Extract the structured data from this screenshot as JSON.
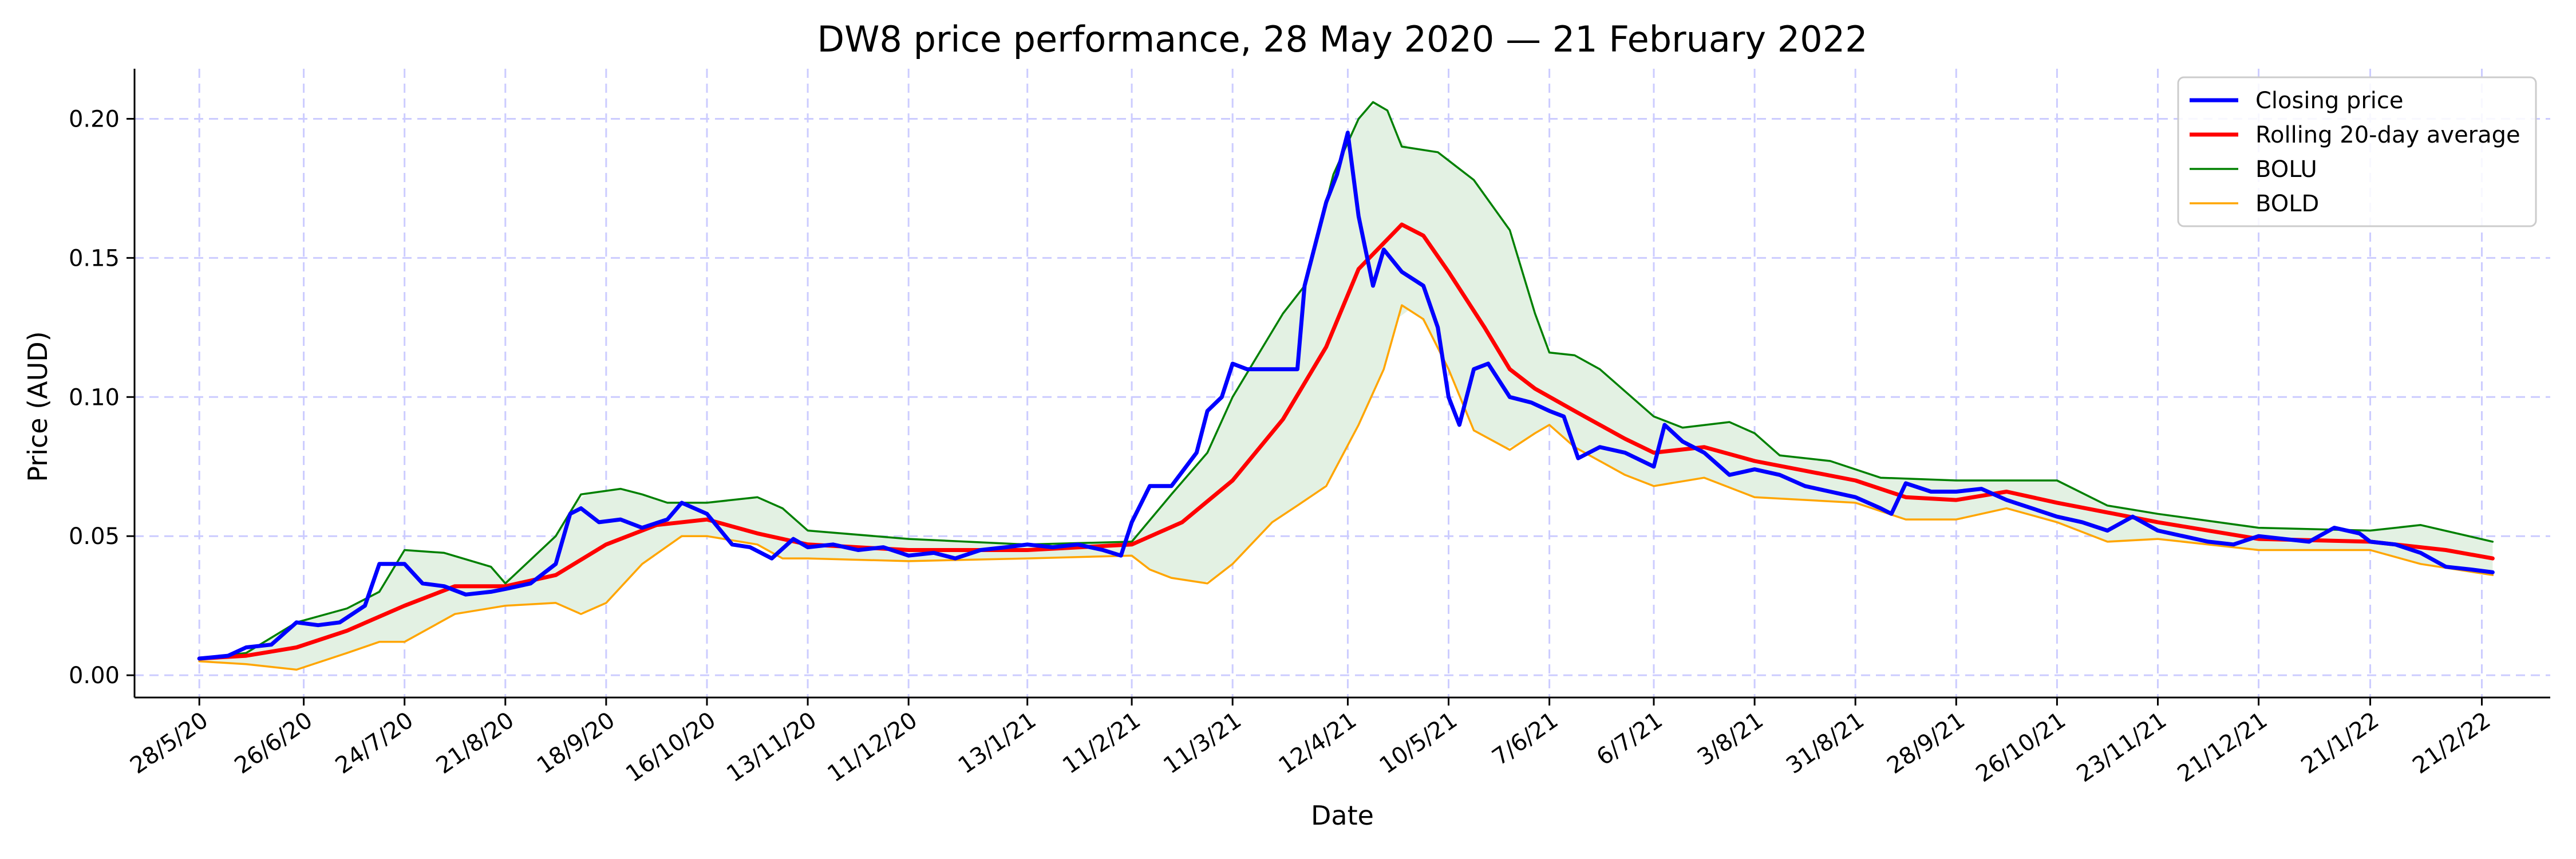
{
  "chart_data": {
    "type": "line",
    "title": "DW8 price performance, 28 May 2020 — 21 February 2022",
    "xlabel": "Date",
    "ylabel": "Price (AUD)",
    "ylim": [
      -0.008,
      0.218
    ],
    "xlim": [
      "2020-05-10",
      "2022-03-12"
    ],
    "yticks": [
      0.0,
      0.05,
      0.1,
      0.15,
      0.2
    ],
    "ytick_labels": [
      "0.00",
      "0.05",
      "0.10",
      "0.15",
      "0.20"
    ],
    "xticks": [
      "2020-05-28",
      "2020-06-26",
      "2020-07-24",
      "2020-08-21",
      "2020-09-18",
      "2020-10-16",
      "2020-11-13",
      "2020-12-11",
      "2021-01-13",
      "2021-02-11",
      "2021-03-11",
      "2021-04-12",
      "2021-05-10",
      "2021-06-07",
      "2021-07-06",
      "2021-08-03",
      "2021-08-31",
      "2021-09-28",
      "2021-10-26",
      "2021-11-23",
      "2021-12-21",
      "2022-01-21",
      "2022-02-21"
    ],
    "xtick_labels": [
      "28/5/20",
      "26/6/20",
      "24/7/20",
      "21/8/20",
      "18/9/20",
      "16/10/20",
      "13/11/20",
      "11/12/20",
      "13/1/21",
      "11/2/21",
      "11/3/21",
      "12/4/21",
      "10/5/21",
      "7/6/21",
      "6/7/21",
      "3/8/21",
      "31/8/21",
      "28/9/21",
      "26/10/21",
      "23/11/21",
      "21/12/21",
      "21/1/22",
      "21/2/22"
    ],
    "grid": true,
    "legend_position": "upper right",
    "band_fill_color": "#e3f1e3",
    "series": [
      {
        "name": "Closing price",
        "color": "#0000ff",
        "points": [
          [
            "2020-05-28",
            0.006
          ],
          [
            "2020-06-05",
            0.007
          ],
          [
            "2020-06-10",
            0.01
          ],
          [
            "2020-06-17",
            0.011
          ],
          [
            "2020-06-24",
            0.019
          ],
          [
            "2020-06-30",
            0.018
          ],
          [
            "2020-07-06",
            0.019
          ],
          [
            "2020-07-13",
            0.025
          ],
          [
            "2020-07-17",
            0.04
          ],
          [
            "2020-07-24",
            0.04
          ],
          [
            "2020-07-29",
            0.033
          ],
          [
            "2020-08-04",
            0.032
          ],
          [
            "2020-08-10",
            0.029
          ],
          [
            "2020-08-17",
            0.03
          ],
          [
            "2020-08-21",
            0.031
          ],
          [
            "2020-08-28",
            0.033
          ],
          [
            "2020-09-04",
            0.04
          ],
          [
            "2020-09-08",
            0.058
          ],
          [
            "2020-09-11",
            0.06
          ],
          [
            "2020-09-16",
            0.055
          ],
          [
            "2020-09-22",
            0.056
          ],
          [
            "2020-09-28",
            0.053
          ],
          [
            "2020-10-05",
            0.056
          ],
          [
            "2020-10-09",
            0.062
          ],
          [
            "2020-10-16",
            0.058
          ],
          [
            "2020-10-23",
            0.047
          ],
          [
            "2020-10-28",
            0.046
          ],
          [
            "2020-11-03",
            0.042
          ],
          [
            "2020-11-09",
            0.049
          ],
          [
            "2020-11-13",
            0.046
          ],
          [
            "2020-11-20",
            0.047
          ],
          [
            "2020-11-27",
            0.045
          ],
          [
            "2020-12-04",
            0.046
          ],
          [
            "2020-12-11",
            0.043
          ],
          [
            "2020-12-18",
            0.044
          ],
          [
            "2020-12-24",
            0.042
          ],
          [
            "2020-12-31",
            0.045
          ],
          [
            "2021-01-07",
            0.046
          ],
          [
            "2021-01-13",
            0.047
          ],
          [
            "2021-01-20",
            0.046
          ],
          [
            "2021-01-27",
            0.047
          ],
          [
            "2021-02-03",
            0.045
          ],
          [
            "2021-02-08",
            0.043
          ],
          [
            "2021-02-11",
            0.055
          ],
          [
            "2021-02-16",
            0.068
          ],
          [
            "2021-02-22",
            0.068
          ],
          [
            "2021-03-01",
            0.08
          ],
          [
            "2021-03-04",
            0.095
          ],
          [
            "2021-03-08",
            0.1
          ],
          [
            "2021-03-11",
            0.112
          ],
          [
            "2021-03-15",
            0.11
          ],
          [
            "2021-03-22",
            0.11
          ],
          [
            "2021-03-29",
            0.11
          ],
          [
            "2021-03-31",
            0.14
          ],
          [
            "2021-04-06",
            0.17
          ],
          [
            "2021-04-09",
            0.18
          ],
          [
            "2021-04-12",
            0.195
          ],
          [
            "2021-04-15",
            0.165
          ],
          [
            "2021-04-19",
            0.14
          ],
          [
            "2021-04-22",
            0.153
          ],
          [
            "2021-04-27",
            0.145
          ],
          [
            "2021-05-03",
            0.14
          ],
          [
            "2021-05-07",
            0.125
          ],
          [
            "2021-05-10",
            0.1
          ],
          [
            "2021-05-13",
            0.09
          ],
          [
            "2021-05-17",
            0.11
          ],
          [
            "2021-05-21",
            0.112
          ],
          [
            "2021-05-27",
            0.1
          ],
          [
            "2021-06-02",
            0.098
          ],
          [
            "2021-06-07",
            0.095
          ],
          [
            "2021-06-11",
            0.093
          ],
          [
            "2021-06-15",
            0.078
          ],
          [
            "2021-06-21",
            0.082
          ],
          [
            "2021-06-28",
            0.08
          ],
          [
            "2021-07-06",
            0.075
          ],
          [
            "2021-07-09",
            0.09
          ],
          [
            "2021-07-14",
            0.084
          ],
          [
            "2021-07-20",
            0.08
          ],
          [
            "2021-07-27",
            0.072
          ],
          [
            "2021-08-03",
            0.074
          ],
          [
            "2021-08-10",
            0.072
          ],
          [
            "2021-08-17",
            0.068
          ],
          [
            "2021-08-24",
            0.066
          ],
          [
            "2021-08-31",
            0.064
          ],
          [
            "2021-09-07",
            0.06
          ],
          [
            "2021-09-10",
            0.058
          ],
          [
            "2021-09-14",
            0.069
          ],
          [
            "2021-09-21",
            0.066
          ],
          [
            "2021-09-28",
            0.066
          ],
          [
            "2021-10-05",
            0.067
          ],
          [
            "2021-10-12",
            0.063
          ],
          [
            "2021-10-19",
            0.06
          ],
          [
            "2021-10-26",
            0.057
          ],
          [
            "2021-11-02",
            0.055
          ],
          [
            "2021-11-09",
            0.052
          ],
          [
            "2021-11-16",
            0.057
          ],
          [
            "2021-11-23",
            0.052
          ],
          [
            "2021-11-30",
            0.05
          ],
          [
            "2021-12-07",
            0.048
          ],
          [
            "2021-12-14",
            0.047
          ],
          [
            "2021-12-21",
            0.05
          ],
          [
            "2021-12-28",
            0.049
          ],
          [
            "2022-01-04",
            0.048
          ],
          [
            "2022-01-11",
            0.053
          ],
          [
            "2022-01-18",
            0.051
          ],
          [
            "2022-01-21",
            0.048
          ],
          [
            "2022-01-28",
            0.047
          ],
          [
            "2022-02-04",
            0.044
          ],
          [
            "2022-02-11",
            0.039
          ],
          [
            "2022-02-18",
            0.038
          ],
          [
            "2022-02-24",
            0.037
          ]
        ]
      },
      {
        "name": "Rolling 20-day average",
        "color": "#ff0000",
        "points": [
          [
            "2020-05-28",
            0.006
          ],
          [
            "2020-06-10",
            0.007
          ],
          [
            "2020-06-24",
            0.01
          ],
          [
            "2020-07-08",
            0.016
          ],
          [
            "2020-07-24",
            0.025
          ],
          [
            "2020-08-07",
            0.032
          ],
          [
            "2020-08-21",
            0.032
          ],
          [
            "2020-09-04",
            0.036
          ],
          [
            "2020-09-18",
            0.047
          ],
          [
            "2020-10-02",
            0.054
          ],
          [
            "2020-10-16",
            0.056
          ],
          [
            "2020-10-30",
            0.051
          ],
          [
            "2020-11-13",
            0.047
          ],
          [
            "2020-12-11",
            0.045
          ],
          [
            "2021-01-13",
            0.045
          ],
          [
            "2021-02-11",
            0.047
          ],
          [
            "2021-02-25",
            0.055
          ],
          [
            "2021-03-11",
            0.07
          ],
          [
            "2021-03-25",
            0.092
          ],
          [
            "2021-04-06",
            0.118
          ],
          [
            "2021-04-15",
            0.146
          ],
          [
            "2021-04-27",
            0.162
          ],
          [
            "2021-05-03",
            0.158
          ],
          [
            "2021-05-10",
            0.145
          ],
          [
            "2021-05-20",
            0.125
          ],
          [
            "2021-05-27",
            0.11
          ],
          [
            "2021-06-03",
            0.103
          ],
          [
            "2021-06-14",
            0.095
          ],
          [
            "2021-06-28",
            0.085
          ],
          [
            "2021-07-06",
            0.08
          ],
          [
            "2021-07-20",
            0.082
          ],
          [
            "2021-08-03",
            0.077
          ],
          [
            "2021-08-31",
            0.07
          ],
          [
            "2021-09-14",
            0.064
          ],
          [
            "2021-09-28",
            0.063
          ],
          [
            "2021-10-12",
            0.066
          ],
          [
            "2021-10-26",
            0.062
          ],
          [
            "2021-11-23",
            0.055
          ],
          [
            "2021-12-21",
            0.049
          ],
          [
            "2022-01-21",
            0.048
          ],
          [
            "2022-02-11",
            0.045
          ],
          [
            "2022-02-24",
            0.042
          ]
        ]
      },
      {
        "name": "BOLU",
        "color": "#008000",
        "points": [
          [
            "2020-05-28",
            0.006
          ],
          [
            "2020-06-10",
            0.008
          ],
          [
            "2020-06-24",
            0.019
          ],
          [
            "2020-07-08",
            0.024
          ],
          [
            "2020-07-17",
            0.03
          ],
          [
            "2020-07-24",
            0.045
          ],
          [
            "2020-08-04",
            0.044
          ],
          [
            "2020-08-17",
            0.039
          ],
          [
            "2020-08-21",
            0.033
          ],
          [
            "2020-09-04",
            0.05
          ],
          [
            "2020-09-11",
            0.065
          ],
          [
            "2020-09-22",
            0.067
          ],
          [
            "2020-09-28",
            0.065
          ],
          [
            "2020-10-05",
            0.062
          ],
          [
            "2020-10-16",
            0.062
          ],
          [
            "2020-10-30",
            0.064
          ],
          [
            "2020-11-06",
            0.06
          ],
          [
            "2020-11-13",
            0.052
          ],
          [
            "2020-12-11",
            0.049
          ],
          [
            "2021-01-13",
            0.047
          ],
          [
            "2021-02-11",
            0.048
          ],
          [
            "2021-02-22",
            0.065
          ],
          [
            "2021-03-04",
            0.08
          ],
          [
            "2021-03-11",
            0.1
          ],
          [
            "2021-03-25",
            0.13
          ],
          [
            "2021-03-31",
            0.14
          ],
          [
            "2021-04-08",
            0.18
          ],
          [
            "2021-04-15",
            0.2
          ],
          [
            "2021-04-19",
            0.206
          ],
          [
            "2021-04-23",
            0.203
          ],
          [
            "2021-04-27",
            0.19
          ],
          [
            "2021-05-07",
            0.188
          ],
          [
            "2021-05-17",
            0.178
          ],
          [
            "2021-05-27",
            0.16
          ],
          [
            "2021-06-03",
            0.13
          ],
          [
            "2021-06-07",
            0.116
          ],
          [
            "2021-06-14",
            0.115
          ],
          [
            "2021-06-21",
            0.11
          ],
          [
            "2021-07-06",
            0.093
          ],
          [
            "2021-07-14",
            0.089
          ],
          [
            "2021-07-27",
            0.091
          ],
          [
            "2021-08-03",
            0.087
          ],
          [
            "2021-08-10",
            0.079
          ],
          [
            "2021-08-24",
            0.077
          ],
          [
            "2021-09-07",
            0.071
          ],
          [
            "2021-09-28",
            0.07
          ],
          [
            "2021-10-12",
            0.07
          ],
          [
            "2021-10-26",
            0.07
          ],
          [
            "2021-11-09",
            0.061
          ],
          [
            "2021-11-23",
            0.058
          ],
          [
            "2021-12-21",
            0.053
          ],
          [
            "2022-01-21",
            0.052
          ],
          [
            "2022-02-04",
            0.054
          ],
          [
            "2022-02-24",
            0.048
          ]
        ]
      },
      {
        "name": "BOLD",
        "color": "#ffa500",
        "points": [
          [
            "2020-05-28",
            0.005
          ],
          [
            "2020-06-10",
            0.004
          ],
          [
            "2020-06-24",
            0.002
          ],
          [
            "2020-07-08",
            0.008
          ],
          [
            "2020-07-17",
            0.012
          ],
          [
            "2020-07-24",
            0.012
          ],
          [
            "2020-08-07",
            0.022
          ],
          [
            "2020-08-21",
            0.025
          ],
          [
            "2020-09-04",
            0.026
          ],
          [
            "2020-09-11",
            0.022
          ],
          [
            "2020-09-18",
            0.026
          ],
          [
            "2020-09-28",
            0.04
          ],
          [
            "2020-10-09",
            0.05
          ],
          [
            "2020-10-16",
            0.05
          ],
          [
            "2020-10-30",
            0.047
          ],
          [
            "2020-11-06",
            0.042
          ],
          [
            "2020-11-13",
            0.042
          ],
          [
            "2020-12-11",
            0.041
          ],
          [
            "2021-01-13",
            0.042
          ],
          [
            "2021-02-11",
            0.043
          ],
          [
            "2021-02-16",
            0.038
          ],
          [
            "2021-02-22",
            0.035
          ],
          [
            "2021-03-04",
            0.033
          ],
          [
            "2021-03-11",
            0.04
          ],
          [
            "2021-03-22",
            0.055
          ],
          [
            "2021-03-29",
            0.061
          ],
          [
            "2021-04-06",
            0.068
          ],
          [
            "2021-04-15",
            0.09
          ],
          [
            "2021-04-22",
            0.11
          ],
          [
            "2021-04-27",
            0.133
          ],
          [
            "2021-05-03",
            0.128
          ],
          [
            "2021-05-10",
            0.11
          ],
          [
            "2021-05-17",
            0.088
          ],
          [
            "2021-05-27",
            0.081
          ],
          [
            "2021-06-03",
            0.087
          ],
          [
            "2021-06-07",
            0.09
          ],
          [
            "2021-06-14",
            0.082
          ],
          [
            "2021-06-28",
            0.072
          ],
          [
            "2021-07-06",
            0.068
          ],
          [
            "2021-07-20",
            0.071
          ],
          [
            "2021-08-03",
            0.064
          ],
          [
            "2021-08-31",
            0.062
          ],
          [
            "2021-09-14",
            0.056
          ],
          [
            "2021-09-28",
            0.056
          ],
          [
            "2021-10-12",
            0.06
          ],
          [
            "2021-10-26",
            0.055
          ],
          [
            "2021-11-09",
            0.048
          ],
          [
            "2021-11-23",
            0.049
          ],
          [
            "2021-12-21",
            0.045
          ],
          [
            "2022-01-21",
            0.045
          ],
          [
            "2022-02-04",
            0.04
          ],
          [
            "2022-02-24",
            0.036
          ]
        ]
      }
    ]
  }
}
